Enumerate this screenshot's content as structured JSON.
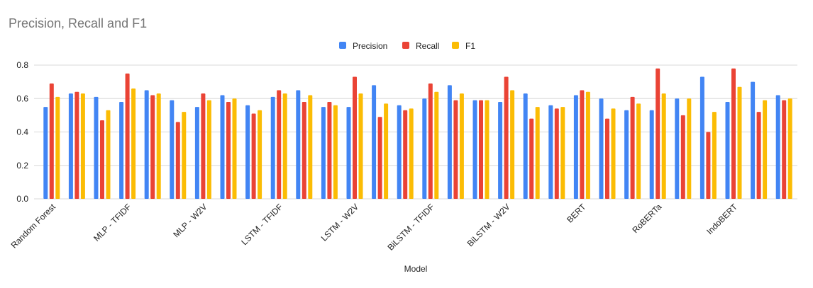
{
  "chart_data": {
    "type": "bar",
    "title": "Precision, Recall and F1",
    "x_label": "Model",
    "categories": [
      "Random Forest",
      null,
      null,
      "MLP - TFIDF",
      null,
      null,
      "MLP - W2V",
      null,
      null,
      "LSTM - TFIDF",
      null,
      null,
      "LSTM - W2V",
      null,
      null,
      "BiLSTM - TFIDF",
      null,
      null,
      "BiLSTM - W2V",
      null,
      null,
      "BERT",
      null,
      null,
      "RoBERTa",
      null,
      null,
      "IndoBERT",
      null,
      null
    ],
    "series": [
      {
        "name": "Precision",
        "color": "#4285f4",
        "values": [
          0.55,
          0.63,
          0.61,
          0.58,
          0.65,
          0.59,
          0.55,
          0.62,
          0.56,
          0.61,
          0.65,
          0.55,
          0.55,
          0.68,
          0.56,
          0.6,
          0.68,
          0.59,
          0.58,
          0.63,
          0.56,
          0.62,
          0.6,
          0.53,
          0.53,
          0.6,
          0.73,
          0.58,
          0.7,
          0.62
        ]
      },
      {
        "name": "Recall",
        "color": "#ea4335",
        "values": [
          0.69,
          0.64,
          0.47,
          0.75,
          0.62,
          0.46,
          0.63,
          0.58,
          0.51,
          0.65,
          0.58,
          0.58,
          0.73,
          0.49,
          0.53,
          0.69,
          0.59,
          0.59,
          0.73,
          0.48,
          0.54,
          0.65,
          0.48,
          0.61,
          0.78,
          0.5,
          0.4,
          0.78,
          0.52,
          0.59
        ]
      },
      {
        "name": "F1",
        "color": "#fbbc04",
        "values": [
          0.61,
          0.63,
          0.53,
          0.66,
          0.63,
          0.52,
          0.59,
          0.6,
          0.53,
          0.63,
          0.62,
          0.56,
          0.63,
          0.57,
          0.54,
          0.64,
          0.63,
          0.59,
          0.65,
          0.55,
          0.55,
          0.64,
          0.54,
          0.57,
          0.63,
          0.6,
          0.52,
          0.67,
          0.59,
          0.6
        ]
      }
    ],
    "ylim": [
      0,
      0.8
    ],
    "yticks": [
      {
        "value": 0,
        "label": "0.0"
      },
      0.2,
      0.4,
      0.6,
      0.8
    ],
    "grid": true,
    "legend": "top"
  }
}
